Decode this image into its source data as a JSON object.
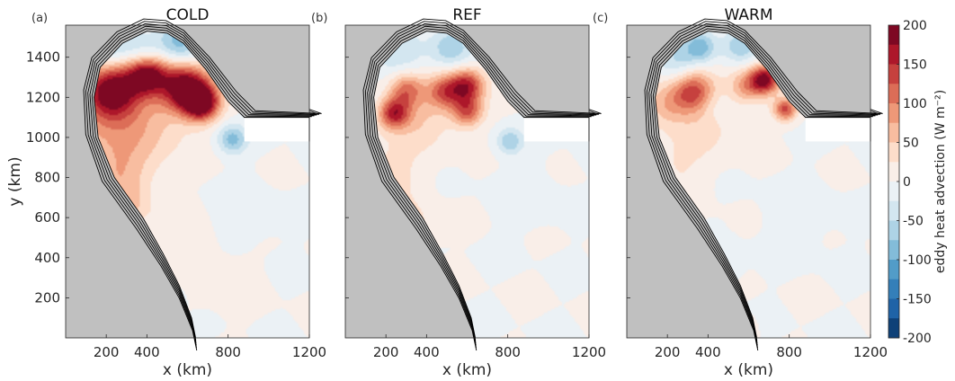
{
  "chart_data": {
    "type": "heatmap",
    "panels": [
      {
        "label": "(a)",
        "title": "COLD",
        "features": [
          {
            "x": 230,
            "y": 1240,
            "v": 170,
            "s": 90
          },
          {
            "x": 400,
            "y": 1320,
            "v": 190,
            "s": 70
          },
          {
            "x": 590,
            "y": 1250,
            "v": 210,
            "s": 85
          },
          {
            "x": 670,
            "y": 1170,
            "v": 190,
            "s": 60
          },
          {
            "x": 190,
            "y": 1130,
            "v": 75,
            "s": 140
          },
          {
            "x": 420,
            "y": 1060,
            "v": 45,
            "s": 140
          },
          {
            "x": 260,
            "y": 820,
            "v": 60,
            "s": 110
          },
          {
            "x": 290,
            "y": 620,
            "v": 55,
            "s": 90
          },
          {
            "x": 370,
            "y": 420,
            "v": 65,
            "s": 60
          },
          {
            "x": 460,
            "y": 140,
            "v": 70,
            "s": 50
          },
          {
            "x": 820,
            "y": 990,
            "v": -85,
            "s": 50
          },
          {
            "x": 560,
            "y": 1480,
            "v": -90,
            "s": 80
          },
          {
            "x": 230,
            "y": 1460,
            "v": -60,
            "s": 100
          },
          {
            "x": 390,
            "y": 1400,
            "v": -50,
            "s": 60
          },
          {
            "x": 330,
            "y": 530,
            "v": -45,
            "s": 55
          },
          {
            "x": 520,
            "y": 200,
            "v": -50,
            "s": 40
          },
          {
            "x": 880,
            "y": 600,
            "v": -15,
            "s": 120
          },
          {
            "x": 700,
            "y": 350,
            "v": 12,
            "s": 150
          }
        ]
      },
      {
        "label": "(b)",
        "title": "REF",
        "features": [
          {
            "x": 240,
            "y": 1120,
            "v": 150,
            "s": 55
          },
          {
            "x": 300,
            "y": 1240,
            "v": 100,
            "s": 60
          },
          {
            "x": 490,
            "y": 1230,
            "v": 110,
            "s": 60
          },
          {
            "x": 600,
            "y": 1260,
            "v": 150,
            "s": 60
          },
          {
            "x": 600,
            "y": 1130,
            "v": 120,
            "s": 55
          },
          {
            "x": 380,
            "y": 1100,
            "v": 45,
            "s": 110
          },
          {
            "x": 220,
            "y": 820,
            "v": 35,
            "s": 110
          },
          {
            "x": 320,
            "y": 560,
            "v": 35,
            "s": 90
          },
          {
            "x": 480,
            "y": 60,
            "v": 90,
            "s": 45
          },
          {
            "x": 810,
            "y": 980,
            "v": -70,
            "s": 45
          },
          {
            "x": 520,
            "y": 1450,
            "v": -70,
            "s": 70
          },
          {
            "x": 260,
            "y": 1420,
            "v": -45,
            "s": 90
          },
          {
            "x": 420,
            "y": 200,
            "v": -35,
            "s": 50
          },
          {
            "x": 300,
            "y": 450,
            "v": -25,
            "s": 60
          },
          {
            "x": 900,
            "y": 700,
            "v": -12,
            "s": 120
          }
        ]
      },
      {
        "label": "(c)",
        "title": "WARM",
        "features": [
          {
            "x": 330,
            "y": 1230,
            "v": 120,
            "s": 70
          },
          {
            "x": 200,
            "y": 1170,
            "v": 70,
            "s": 80
          },
          {
            "x": 590,
            "y": 1260,
            "v": 80,
            "s": 60
          },
          {
            "x": 680,
            "y": 1290,
            "v": 180,
            "s": 50
          },
          {
            "x": 780,
            "y": 1140,
            "v": 130,
            "s": 40
          },
          {
            "x": 400,
            "y": 1080,
            "v": 35,
            "s": 110
          },
          {
            "x": 250,
            "y": 850,
            "v": 25,
            "s": 110
          },
          {
            "x": 550,
            "y": 40,
            "v": 110,
            "s": 40
          },
          {
            "x": 360,
            "y": 1450,
            "v": -90,
            "s": 55
          },
          {
            "x": 560,
            "y": 1460,
            "v": -70,
            "s": 60
          },
          {
            "x": 240,
            "y": 1380,
            "v": -50,
            "s": 70
          },
          {
            "x": 430,
            "y": 1160,
            "v": -25,
            "s": 60
          },
          {
            "x": 450,
            "y": 350,
            "v": -25,
            "s": 70
          },
          {
            "x": 850,
            "y": 600,
            "v": -12,
            "s": 130
          }
        ]
      }
    ],
    "domain": {
      "coast_west": [
        [
          640,
          0
        ],
        [
          620,
          100
        ],
        [
          560,
          260
        ],
        [
          480,
          420
        ],
        [
          380,
          600
        ],
        [
          240,
          800
        ],
        [
          160,
          1000
        ],
        [
          140,
          1200
        ],
        [
          170,
          1350
        ],
        [
          280,
          1470
        ],
        [
          400,
          1530
        ],
        [
          500,
          1520
        ],
        [
          580,
          1470
        ],
        [
          690,
          1340
        ],
        [
          800,
          1180
        ],
        [
          880,
          1100
        ],
        [
          1200,
          1100
        ]
      ],
      "coast_east": [
        [
          700,
          0
        ],
        [
          700,
          60
        ],
        [
          700,
          120
        ],
        [
          705,
          0
        ]
      ],
      "outer_edge": [
        [
          640,
          0
        ],
        [
          620,
          100
        ],
        [
          560,
          260
        ],
        [
          480,
          420
        ],
        [
          380,
          600
        ],
        [
          240,
          800
        ],
        [
          160,
          1000
        ],
        [
          140,
          1200
        ],
        [
          170,
          1350
        ],
        [
          280,
          1470
        ],
        [
          400,
          1530
        ],
        [
          500,
          1520
        ],
        [
          580,
          1470
        ],
        [
          690,
          1340
        ],
        [
          800,
          1180
        ],
        [
          880,
          1100
        ]
      ]
    },
    "xlim": [
      0,
      1200
    ],
    "ylim": [
      0,
      1560
    ],
    "xticks": [
      200,
      400,
      800,
      1200
    ],
    "yticks": [
      200,
      400,
      600,
      800,
      1000,
      1200,
      1400
    ],
    "xlabel": "x (km)",
    "ylabel": "y (km)",
    "colorbar": {
      "label": "eddy heat advection (W m⁻²)",
      "ticks": [
        200,
        150,
        100,
        50,
        0,
        -50,
        -100,
        -150,
        -200
      ],
      "range": [
        -200,
        200
      ],
      "levels": 16,
      "colors": [
        "#053061",
        "#2166ac",
        "#4393c3",
        "#92c5de",
        "#d1e5f0",
        "#f7f7f7",
        "#fddbc7",
        "#f4a582",
        "#d6604d",
        "#b2182b",
        "#67001f"
      ]
    },
    "land_color": "#c0c0c0"
  }
}
